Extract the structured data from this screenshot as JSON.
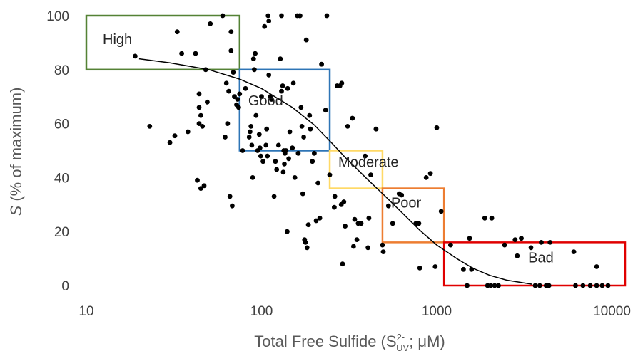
{
  "chart_data": {
    "type": "scatter",
    "x_scale": "log",
    "xlim": [
      10,
      12000
    ],
    "ylim": [
      0,
      100
    ],
    "xticks": [
      "10",
      "100",
      "1000",
      "10000"
    ],
    "yticks": [
      "0",
      "20",
      "40",
      "60",
      "80",
      "100"
    ],
    "ylabel_italic": "S",
    "ylabel_rest": " (% of maximum)",
    "xlabel_main": "Total Free Sulfide (S",
    "xlabel_sup": "2-",
    "xlabel_sub": "UV",
    "xlabel_tail": "; μM)",
    "grid": false,
    "marker_color": "#000000",
    "curve_color": "#000000",
    "zones": [
      {
        "label": "High",
        "x": [
          10,
          75
        ],
        "y": [
          80,
          100
        ],
        "color": "#548235"
      },
      {
        "label": "Good",
        "x": [
          75,
          245
        ],
        "y": [
          50,
          80
        ],
        "color": "#2E75B6"
      },
      {
        "label": "Moderate",
        "x": [
          245,
          490
        ],
        "y": [
          36,
          50
        ],
        "color": "#FFD966"
      },
      {
        "label": "Poor",
        "x": [
          490,
          1100
        ],
        "y": [
          16,
          36
        ],
        "color": "#ED7D31"
      },
      {
        "label": "Bad",
        "x": [
          1100,
          12000
        ],
        "y": [
          0,
          16
        ],
        "color": "#E00000"
      }
    ],
    "fit_curve": [
      [
        20,
        84
      ],
      [
        30,
        82.5
      ],
      [
        50,
        80
      ],
      [
        75,
        76.5
      ],
      [
        100,
        73
      ],
      [
        150,
        66
      ],
      [
        200,
        59.5
      ],
      [
        250,
        53
      ],
      [
        300,
        47.5
      ],
      [
        400,
        39.5
      ],
      [
        500,
        33.5
      ],
      [
        600,
        28.5
      ],
      [
        800,
        20.5
      ],
      [
        1000,
        15
      ],
      [
        1300,
        10
      ],
      [
        1600,
        6.5
      ],
      [
        2000,
        3.8
      ],
      [
        2500,
        2
      ],
      [
        3000,
        1.2
      ],
      [
        3500,
        0.5
      ]
    ],
    "points": [
      [
        19,
        85
      ],
      [
        23,
        59
      ],
      [
        30,
        53
      ],
      [
        32,
        55.5
      ],
      [
        33,
        94
      ],
      [
        35,
        86
      ],
      [
        38,
        57
      ],
      [
        42,
        86
      ],
      [
        43,
        39
      ],
      [
        44,
        71
      ],
      [
        44,
        66
      ],
      [
        44,
        60
      ],
      [
        45,
        63
      ],
      [
        45,
        36
      ],
      [
        46,
        59
      ],
      [
        47,
        37
      ],
      [
        48,
        80
      ],
      [
        49,
        68
      ],
      [
        51,
        97
      ],
      [
        60,
        100
      ],
      [
        62,
        55
      ],
      [
        63,
        75
      ],
      [
        64,
        60
      ],
      [
        65,
        72
      ],
      [
        66,
        33
      ],
      [
        67,
        94
      ],
      [
        67,
        87
      ],
      [
        68,
        29.5
      ],
      [
        69,
        79
      ],
      [
        70,
        70
      ],
      [
        72,
        67
      ],
      [
        73,
        69
      ],
      [
        74,
        66
      ],
      [
        75,
        71
      ],
      [
        78,
        50
      ],
      [
        81,
        73
      ],
      [
        85,
        55
      ],
      [
        86,
        57
      ],
      [
        87,
        59
      ],
      [
        88,
        52
      ],
      [
        89,
        40
      ],
      [
        90,
        84
      ],
      [
        91,
        80
      ],
      [
        92,
        86
      ],
      [
        93,
        63
      ],
      [
        95,
        50
      ],
      [
        97,
        56
      ],
      [
        98,
        51
      ],
      [
        99,
        48
      ],
      [
        100,
        70
      ],
      [
        102,
        46
      ],
      [
        104,
        96
      ],
      [
        106,
        52
      ],
      [
        107,
        58
      ],
      [
        108,
        48
      ],
      [
        109,
        100
      ],
      [
        110,
        98
      ],
      [
        110,
        78
      ],
      [
        112,
        70
      ],
      [
        114,
        69
      ],
      [
        118,
        33
      ],
      [
        120,
        46
      ],
      [
        122,
        43
      ],
      [
        125,
        52
      ],
      [
        128,
        84
      ],
      [
        130,
        100
      ],
      [
        130,
        72
      ],
      [
        132,
        74
      ],
      [
        133,
        42
      ],
      [
        134,
        50
      ],
      [
        135,
        45
      ],
      [
        136,
        49
      ],
      [
        138,
        50
      ],
      [
        140,
        20
      ],
      [
        141,
        73
      ],
      [
        143,
        47
      ],
      [
        145,
        57
      ],
      [
        150,
        51
      ],
      [
        152,
        75
      ],
      [
        155,
        40
      ],
      [
        160,
        100
      ],
      [
        162,
        49
      ],
      [
        165,
        100
      ],
      [
        166,
        100
      ],
      [
        168,
        66
      ],
      [
        170,
        59
      ],
      [
        172,
        34
      ],
      [
        174,
        55
      ],
      [
        176,
        17
      ],
      [
        178,
        16
      ],
      [
        180,
        91
      ],
      [
        182,
        14
      ],
      [
        185,
        22.5
      ],
      [
        188,
        63
      ],
      [
        190,
        58
      ],
      [
        195,
        46
      ],
      [
        200,
        49
      ],
      [
        205,
        24
      ],
      [
        210,
        38
      ],
      [
        215,
        25
      ],
      [
        220,
        82
      ],
      [
        232,
        65
      ],
      [
        236,
        100
      ],
      [
        245,
        41
      ],
      [
        260,
        29
      ],
      [
        262,
        33
      ],
      [
        270,
        74
      ],
      [
        280,
        74
      ],
      [
        285,
        30
      ],
      [
        287,
        75
      ],
      [
        290,
        8
      ],
      [
        295,
        31
      ],
      [
        300,
        22
      ],
      [
        310,
        59
      ],
      [
        330,
        62
      ],
      [
        335,
        14.5
      ],
      [
        340,
        24.5
      ],
      [
        350,
        17
      ],
      [
        356,
        23
      ],
      [
        370,
        23
      ],
      [
        390,
        48
      ],
      [
        405,
        14
      ],
      [
        410,
        25
      ],
      [
        420,
        41
      ],
      [
        450,
        58
      ],
      [
        490,
        15
      ],
      [
        495,
        12.5
      ],
      [
        530,
        29.5
      ],
      [
        560,
        23
      ],
      [
        610,
        34
      ],
      [
        630,
        33.5
      ],
      [
        760,
        23
      ],
      [
        790,
        23
      ],
      [
        800,
        6.5
      ],
      [
        870,
        40
      ],
      [
        920,
        41.5
      ],
      [
        980,
        7
      ],
      [
        1000,
        58.5
      ],
      [
        1060,
        27.5
      ],
      [
        1200,
        15
      ],
      [
        1420,
        6
      ],
      [
        1490,
        0
      ],
      [
        1540,
        17.5
      ],
      [
        1580,
        6
      ],
      [
        1880,
        25
      ],
      [
        1950,
        0
      ],
      [
        2030,
        0
      ],
      [
        2060,
        25
      ],
      [
        2140,
        0
      ],
      [
        2250,
        0
      ],
      [
        2440,
        15
      ],
      [
        2800,
        17
      ],
      [
        2880,
        11
      ],
      [
        3040,
        17.5
      ],
      [
        3450,
        14
      ],
      [
        3650,
        0
      ],
      [
        3870,
        0
      ],
      [
        3950,
        16
      ],
      [
        4210,
        0
      ],
      [
        4350,
        0
      ],
      [
        4370,
        0
      ],
      [
        4430,
        16
      ],
      [
        6060,
        12.5
      ],
      [
        6200,
        0
      ],
      [
        6830,
        0
      ],
      [
        7520,
        0
      ],
      [
        8180,
        0
      ],
      [
        8180,
        7
      ],
      [
        8800,
        0
      ],
      [
        9500,
        0
      ]
    ]
  }
}
